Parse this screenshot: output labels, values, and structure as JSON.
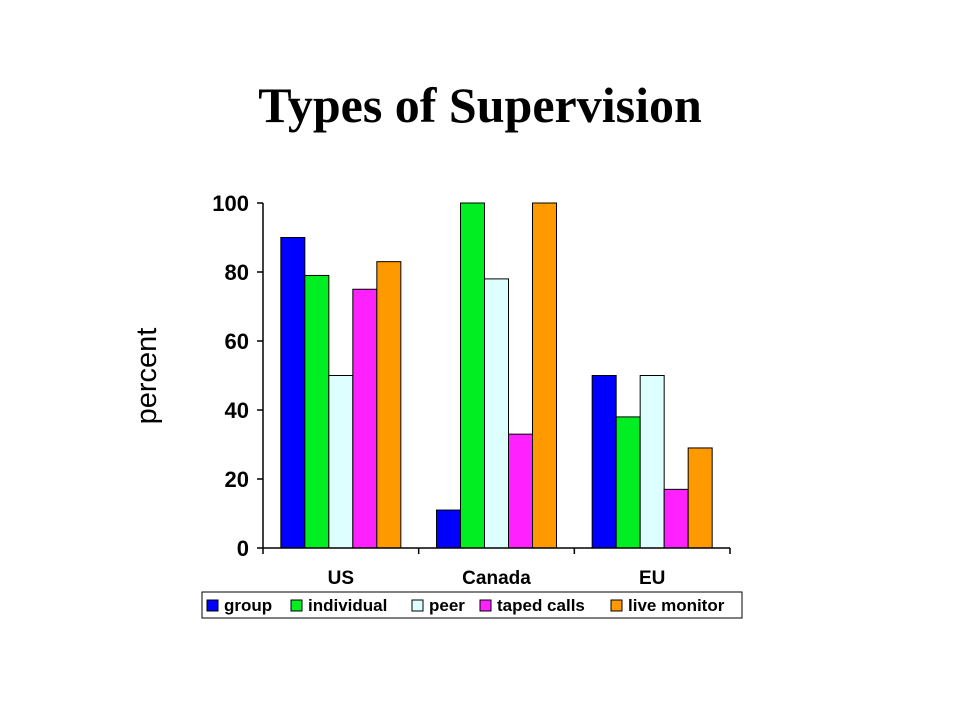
{
  "slide": {
    "title": "Types of Supervision"
  },
  "chart_data": {
    "type": "bar",
    "categories": [
      "US",
      "Canada",
      "EU"
    ],
    "series": [
      {
        "name": "group",
        "color": "#0000FF",
        "values": [
          90,
          11,
          50
        ]
      },
      {
        "name": "individual",
        "color": "#00EE22",
        "values": [
          79,
          100,
          38
        ]
      },
      {
        "name": "peer",
        "color": "#DDFFFF",
        "values": [
          50,
          78,
          50
        ]
      },
      {
        "name": "taped calls",
        "color": "#FF22FF",
        "values": [
          75,
          33,
          17
        ]
      },
      {
        "name": "live monitor",
        "color": "#FF9900",
        "values": [
          83,
          100,
          29
        ]
      }
    ],
    "xlabel": "",
    "ylabel": "percent",
    "ylim": [
      0,
      100
    ],
    "yticks": [
      "0",
      "20",
      "40",
      "60",
      "80",
      "100"
    ],
    "grid": false,
    "legend_position": "bottom"
  }
}
